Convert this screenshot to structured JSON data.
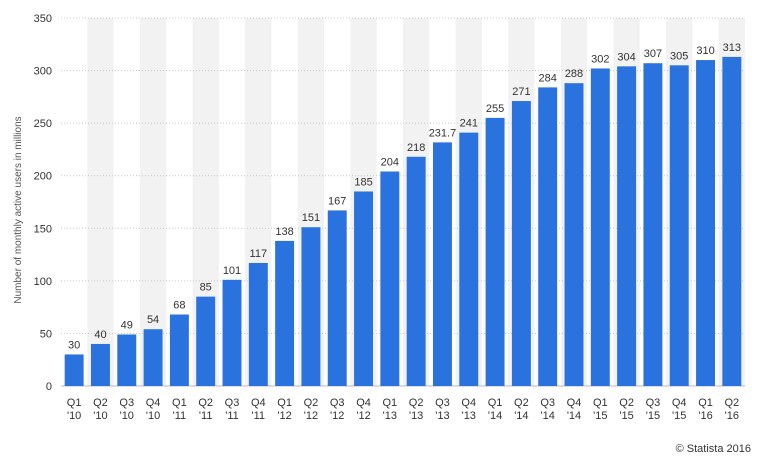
{
  "chart_data": {
    "type": "bar",
    "ylabel": "Number of monthly active users in millions",
    "ylim": [
      0,
      350
    ],
    "yticks": [
      0,
      50,
      100,
      150,
      200,
      250,
      300,
      350
    ],
    "grid": true,
    "categories": [
      [
        "Q1",
        "'10"
      ],
      [
        "Q2",
        "'10"
      ],
      [
        "Q3",
        "'10"
      ],
      [
        "Q4",
        "'10"
      ],
      [
        "Q1",
        "'11"
      ],
      [
        "Q2",
        "'11"
      ],
      [
        "Q3",
        "'11"
      ],
      [
        "Q4",
        "'11"
      ],
      [
        "Q1",
        "'12"
      ],
      [
        "Q2",
        "'12"
      ],
      [
        "Q3",
        "'12"
      ],
      [
        "Q4",
        "'12"
      ],
      [
        "Q1",
        "'13"
      ],
      [
        "Q2",
        "'13"
      ],
      [
        "Q3",
        "'13"
      ],
      [
        "Q4",
        "'13"
      ],
      [
        "Q1",
        "'14"
      ],
      [
        "Q2",
        "'14"
      ],
      [
        "Q3",
        "'14"
      ],
      [
        "Q4",
        "'14"
      ],
      [
        "Q1",
        "'15"
      ],
      [
        "Q2",
        "'15"
      ],
      [
        "Q3",
        "'15"
      ],
      [
        "Q4",
        "'15"
      ],
      [
        "Q1",
        "'16"
      ],
      [
        "Q2",
        "'16"
      ]
    ],
    "values": [
      30,
      40,
      49,
      54,
      68,
      85,
      101,
      117,
      138,
      151,
      167,
      185,
      204,
      218,
      231.7,
      241,
      255,
      271,
      284,
      288,
      302,
      304,
      307,
      305,
      310,
      313
    ],
    "bar_color": "#2a72de",
    "band_color": "#f2f2f2"
  },
  "credit": "© Statista 2016"
}
